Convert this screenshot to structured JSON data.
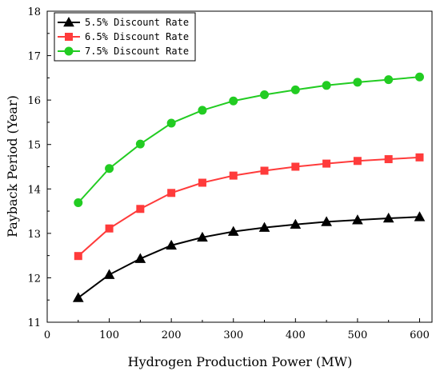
{
  "chart_data": {
    "type": "line",
    "title": "",
    "xlabel": "Hydrogen Production Power (MW)",
    "ylabel": "Payback Period (Year)",
    "xlim": [
      0,
      620
    ],
    "ylim": [
      11,
      18
    ],
    "xticks": [
      0,
      100,
      200,
      300,
      400,
      500,
      600
    ],
    "yticks": [
      11,
      12,
      13,
      14,
      15,
      16,
      17,
      18
    ],
    "grid": false,
    "legend_position": "top-left",
    "x": [
      50,
      100,
      150,
      200,
      250,
      300,
      350,
      400,
      450,
      500,
      550,
      600
    ],
    "series": [
      {
        "name": "5.5% Discount Rate",
        "color": "#000000",
        "marker": "triangle",
        "values": [
          11.55,
          12.07,
          12.43,
          12.73,
          12.91,
          13.04,
          13.13,
          13.2,
          13.26,
          13.3,
          13.34,
          13.37
        ]
      },
      {
        "name": "6.5% Discount Rate",
        "color": "#ff3b3b",
        "marker": "square",
        "values": [
          12.49,
          13.11,
          13.55,
          13.91,
          14.14,
          14.3,
          14.41,
          14.5,
          14.57,
          14.63,
          14.67,
          14.71
        ]
      },
      {
        "name": "7.5% Discount Rate",
        "color": "#22cc22",
        "marker": "circle",
        "values": [
          13.69,
          14.46,
          15.01,
          15.48,
          15.77,
          15.98,
          16.12,
          16.23,
          16.33,
          16.4,
          16.46,
          16.52
        ]
      }
    ]
  }
}
